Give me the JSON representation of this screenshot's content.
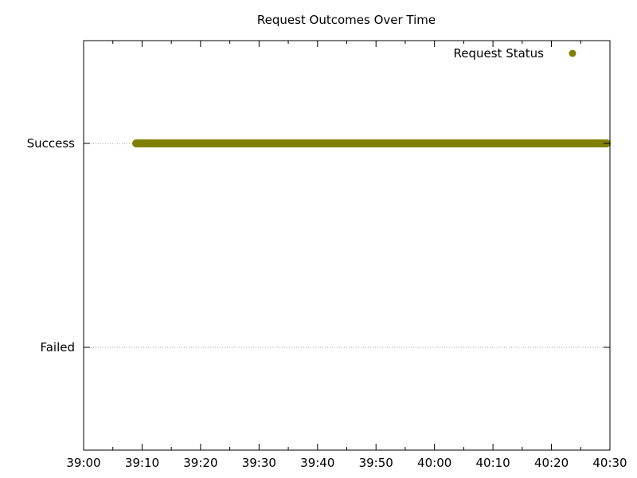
{
  "chart_data": {
    "type": "scatter",
    "title": "Request Outcomes Over Time",
    "xlabel": "",
    "ylabel": "",
    "x_ticks": [
      "39:00",
      "39:10",
      "39:20",
      "39:30",
      "39:40",
      "39:50",
      "40:00",
      "40:10",
      "40:20",
      "40:30"
    ],
    "y_categories": [
      "Failed",
      "Success"
    ],
    "grid": {
      "x": false,
      "y": true
    },
    "legend": {
      "position": "top-right"
    },
    "series": [
      {
        "name": "Request Status",
        "color": "#808000",
        "marker": "circle",
        "x_range": [
          "39:09",
          "40:30"
        ],
        "y": "Success",
        "points": [
          {
            "x": "39:09",
            "y": "Success"
          },
          {
            "x": "39:15",
            "y": "Success"
          },
          {
            "x": "39:20",
            "y": "Success"
          },
          {
            "x": "39:25",
            "y": "Success"
          },
          {
            "x": "39:30",
            "y": "Success"
          },
          {
            "x": "39:35",
            "y": "Success"
          },
          {
            "x": "39:40",
            "y": "Success"
          },
          {
            "x": "39:45",
            "y": "Success"
          },
          {
            "x": "39:50",
            "y": "Success"
          },
          {
            "x": "39:55",
            "y": "Success"
          },
          {
            "x": "40:00",
            "y": "Success"
          },
          {
            "x": "40:05",
            "y": "Success"
          },
          {
            "x": "40:10",
            "y": "Success"
          },
          {
            "x": "40:15",
            "y": "Success"
          },
          {
            "x": "40:20",
            "y": "Success"
          },
          {
            "x": "40:25",
            "y": "Success"
          },
          {
            "x": "40:30",
            "y": "Success"
          }
        ]
      }
    ]
  }
}
